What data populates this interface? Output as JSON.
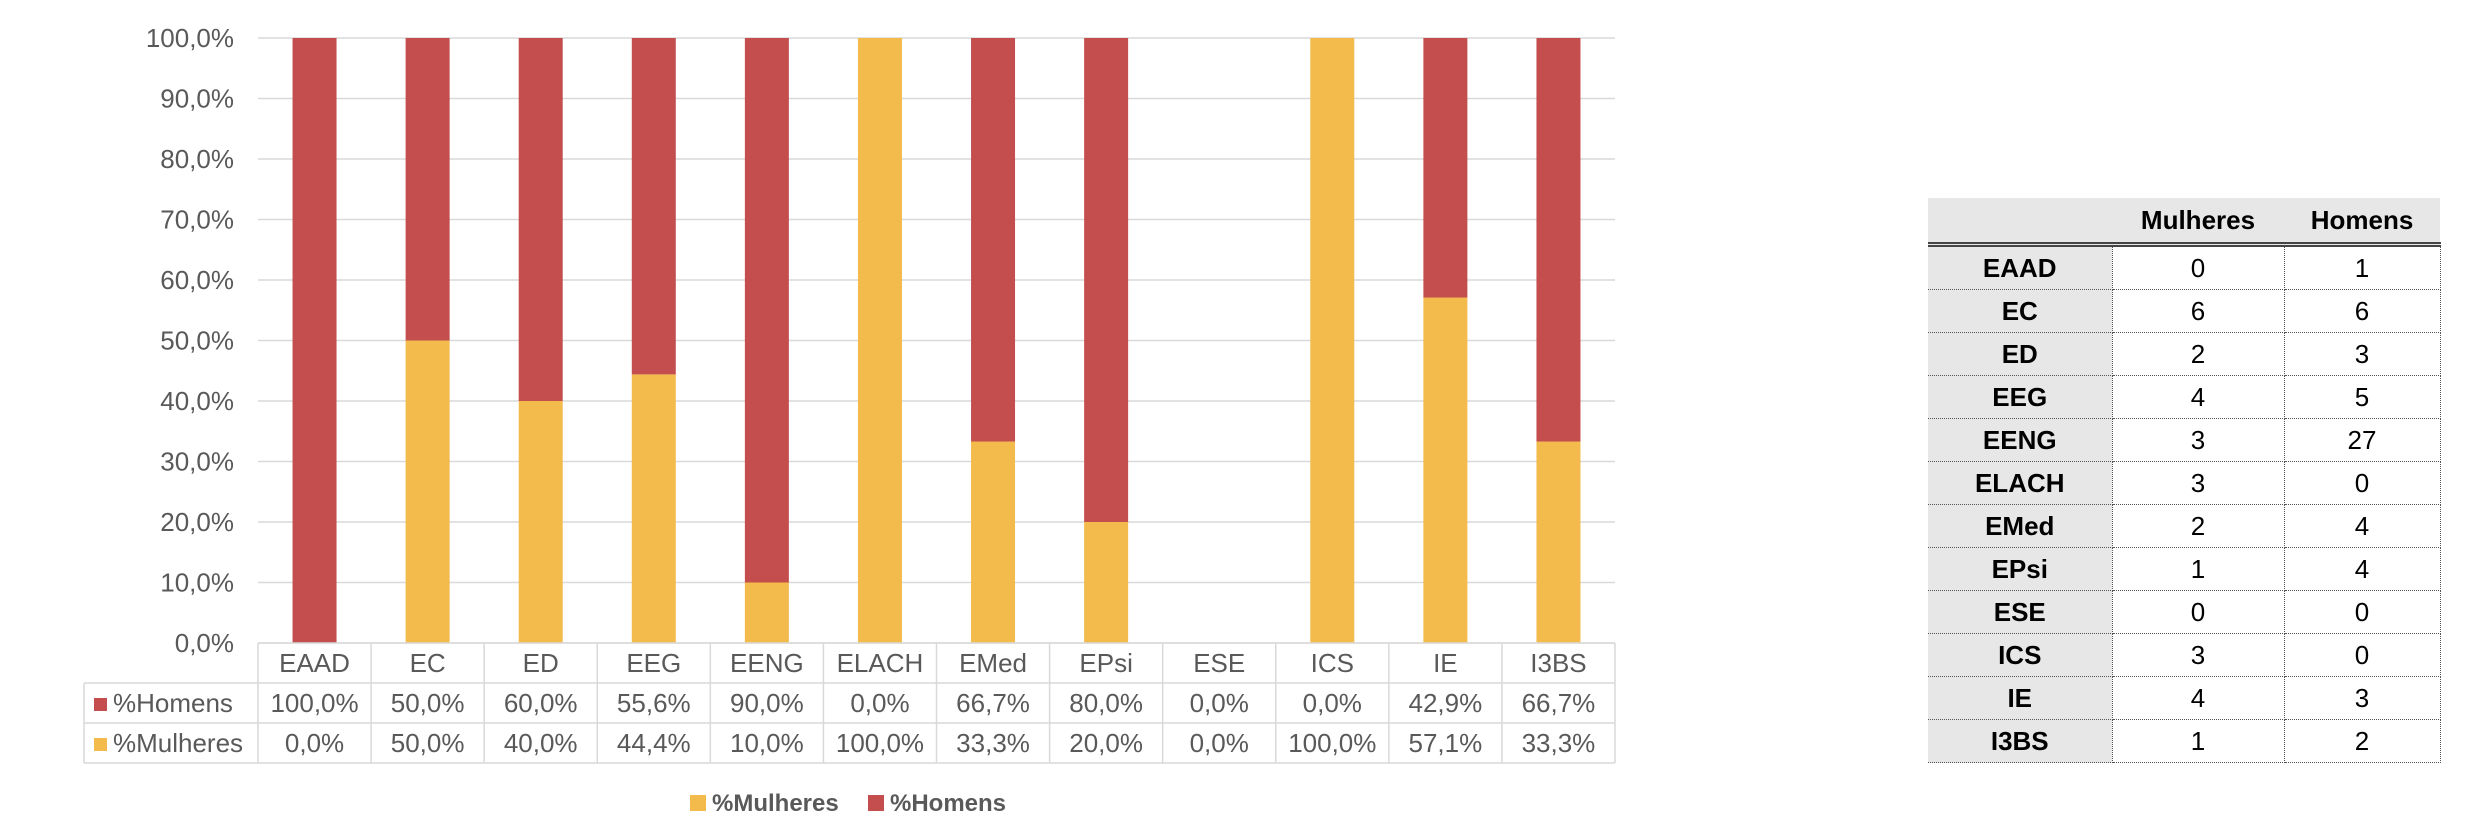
{
  "colors": {
    "mulheres": "#f2bb4b",
    "homens": "#c44e4e",
    "grid": "#d9d9d9",
    "table_header_bg": "#e7e7e7"
  },
  "chart_data": {
    "type": "bar",
    "stacked": true,
    "percent": true,
    "categories": [
      "EAAD",
      "EC",
      "ED",
      "EEG",
      "EENG",
      "ELACH",
      "EMed",
      "EPsi",
      "ESE",
      "ICS",
      "IE",
      "I3BS"
    ],
    "series": [
      {
        "name": "%Mulheres",
        "values": [
          0.0,
          50.0,
          40.0,
          44.4,
          10.0,
          100.0,
          33.3,
          20.0,
          0.0,
          100.0,
          57.1,
          33.3
        ],
        "labels": [
          "0,0%",
          "50,0%",
          "40,0%",
          "44,4%",
          "10,0%",
          "100,0%",
          "33,3%",
          "20,0%",
          "0,0%",
          "100,0%",
          "57,1%",
          "33,3%"
        ]
      },
      {
        "name": "%Homens",
        "values": [
          100.0,
          50.0,
          60.0,
          55.6,
          90.0,
          0.0,
          66.7,
          80.0,
          0.0,
          0.0,
          42.9,
          66.7
        ],
        "labels": [
          "100,0%",
          "50,0%",
          "60,0%",
          "55,6%",
          "90,0%",
          "0,0%",
          "66,7%",
          "80,0%",
          "0,0%",
          "0,0%",
          "42,9%",
          "66,7%"
        ]
      }
    ],
    "ylim": [
      0,
      100
    ],
    "yticks": [
      "0,0%",
      "10,0%",
      "20,0%",
      "30,0%",
      "40,0%",
      "50,0%",
      "60,0%",
      "70,0%",
      "80,0%",
      "90,0%",
      "100,0%"
    ],
    "legend": [
      "%Mulheres",
      "%Homens"
    ],
    "legend_position": "bottom",
    "data_table": true
  },
  "table": {
    "headers": [
      "Mulheres",
      "Homens"
    ],
    "rows": [
      {
        "label": "EAAD",
        "mulheres": "0",
        "homens": "1"
      },
      {
        "label": "EC",
        "mulheres": "6",
        "homens": "6"
      },
      {
        "label": "ED",
        "mulheres": "2",
        "homens": "3"
      },
      {
        "label": "EEG",
        "mulheres": "4",
        "homens": "5"
      },
      {
        "label": "EENG",
        "mulheres": "3",
        "homens": "27"
      },
      {
        "label": "ELACH",
        "mulheres": "3",
        "homens": "0"
      },
      {
        "label": "EMed",
        "mulheres": "2",
        "homens": "4"
      },
      {
        "label": "EPsi",
        "mulheres": "1",
        "homens": "4"
      },
      {
        "label": "ESE",
        "mulheres": "0",
        "homens": "0"
      },
      {
        "label": "ICS",
        "mulheres": "3",
        "homens": "0"
      },
      {
        "label": "IE",
        "mulheres": "4",
        "homens": "3"
      },
      {
        "label": "I3BS",
        "mulheres": "1",
        "homens": "2"
      }
    ]
  }
}
